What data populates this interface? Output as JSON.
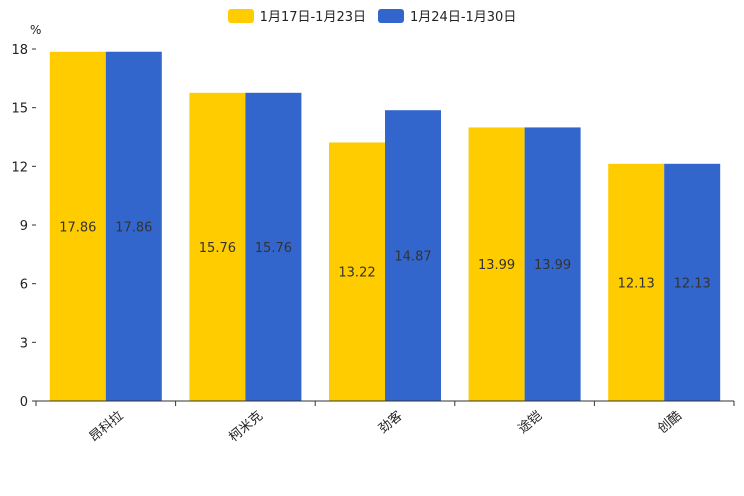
{
  "chart_data": {
    "type": "bar",
    "unit_label": "%",
    "categories": [
      "昂科拉",
      "柯米克",
      "劲客",
      "途铠",
      "创酷"
    ],
    "series": [
      {
        "name": "1月17日-1月23日",
        "color": "#FFCC00",
        "values": [
          17.86,
          15.76,
          13.22,
          13.99,
          12.13
        ]
      },
      {
        "name": "1月24日-1月30日",
        "color": "#3366CC",
        "values": [
          17.86,
          15.76,
          14.87,
          13.99,
          12.13
        ]
      }
    ],
    "ylim": [
      0,
      18
    ],
    "yticks": [
      0,
      3,
      6,
      9,
      12,
      15,
      18
    ],
    "data_labels": [
      [
        "17.86",
        "15.76",
        "13.22",
        "13.99",
        "12.13"
      ],
      [
        "17.86",
        "15.76",
        "14.87",
        "13.99",
        "12.13"
      ]
    ],
    "legend_position": "top-center",
    "title": "",
    "xlabel": "",
    "ylabel": "%"
  }
}
